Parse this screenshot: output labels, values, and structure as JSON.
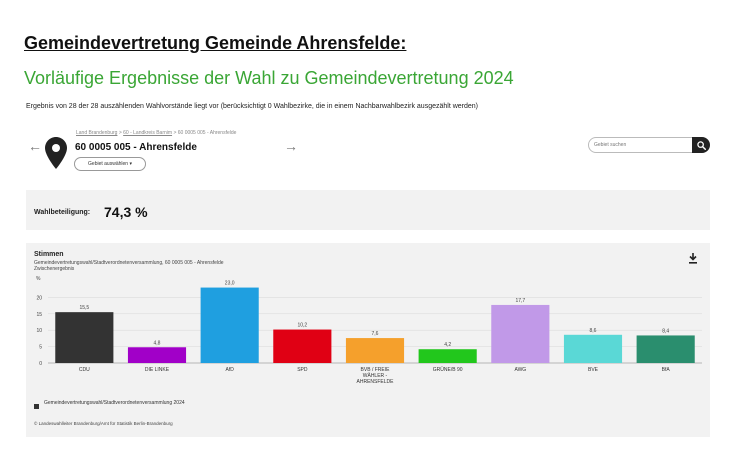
{
  "page": {
    "heading": "Gemeindevertretung Gemeinde Ahrensfelde:",
    "subheading": "Vorläufige Ergebnisse der Wahl zu Gemeindevertretung 2024",
    "intro": "Ergebnis von 28 der 28 auszählenden Wahlvorstände liegt vor (berücksichtigt 0 Wahlbezirke, die in einem Nachbarwahlbezirk ausgezählt werden)"
  },
  "location": {
    "breadcrumb": [
      "Land Brandenburg",
      "60 - Landkreis Barnim",
      "60 0005 005 - Ahrensfelde"
    ],
    "breadcrumb_sep": ">",
    "title": "60 0005 005 - Ahrensfelde",
    "select_label": "Gebiet auswählen ▾",
    "prev_arrow": "←",
    "next_arrow": "→"
  },
  "search": {
    "placeholder": "Gebiet suchen"
  },
  "turnout": {
    "label": "Wahlbeteiligung:",
    "value": "74,3 %"
  },
  "chart_box": {
    "title": "Stimmen",
    "subtitle": "Gemeindevertretungswahl/Stadtverordnetenversammlung, 60 0005 005 - Ahrensfelde",
    "status": "Zwischenergebnis",
    "legend": "Gemeindevertretungswahl/Stadtverordnetenversammlung 2024",
    "credit": "© Landeswahlleiter Brandenburg/Amt für Statistik Berlin-Brandenburg"
  },
  "chart_data": {
    "type": "bar",
    "categories": [
      "CDU",
      "DIE LINKE",
      "AfD",
      "SPD",
      "BVB / FREIE WÄHLER - AHRENSFELDE",
      "GRÜNE/B 90",
      "AWG",
      "BVE",
      "BfA"
    ],
    "category_lines": [
      [
        "CDU"
      ],
      [
        "DIE LINKE"
      ],
      [
        "AfD"
      ],
      [
        "SPD"
      ],
      [
        "BVB / FREIE",
        "WÄHLER -",
        "AHRENSFELDE"
      ],
      [
        "GRÜNE/B 90"
      ],
      [
        "AWG"
      ],
      [
        "BVE"
      ],
      [
        "BfA"
      ]
    ],
    "values": [
      15.5,
      4.8,
      23.0,
      10.2,
      7.6,
      4.2,
      17.7,
      8.6,
      8.4
    ],
    "value_labels": [
      "15,5",
      "4,8",
      "23,0",
      "10,2",
      "7,6",
      "4,2",
      "17,7",
      "8,6",
      "8,4"
    ],
    "colors": [
      "#333333",
      "#a100c8",
      "#1f9fe0",
      "#e00014",
      "#f5a02c",
      "#22c71c",
      "#c199e8",
      "#5ad8d6",
      "#2a8e6e"
    ],
    "y_unit": "%",
    "ylim": [
      0,
      25
    ],
    "yticks": [
      0,
      5,
      10,
      15,
      20
    ],
    "series": [
      {
        "name": "Gemeindevertretungswahl/Stadtverordnetenversammlung 2024",
        "values": [
          15.5,
          4.8,
          23.0,
          10.2,
          7.6,
          4.2,
          17.7,
          8.6,
          8.4
        ]
      }
    ]
  }
}
